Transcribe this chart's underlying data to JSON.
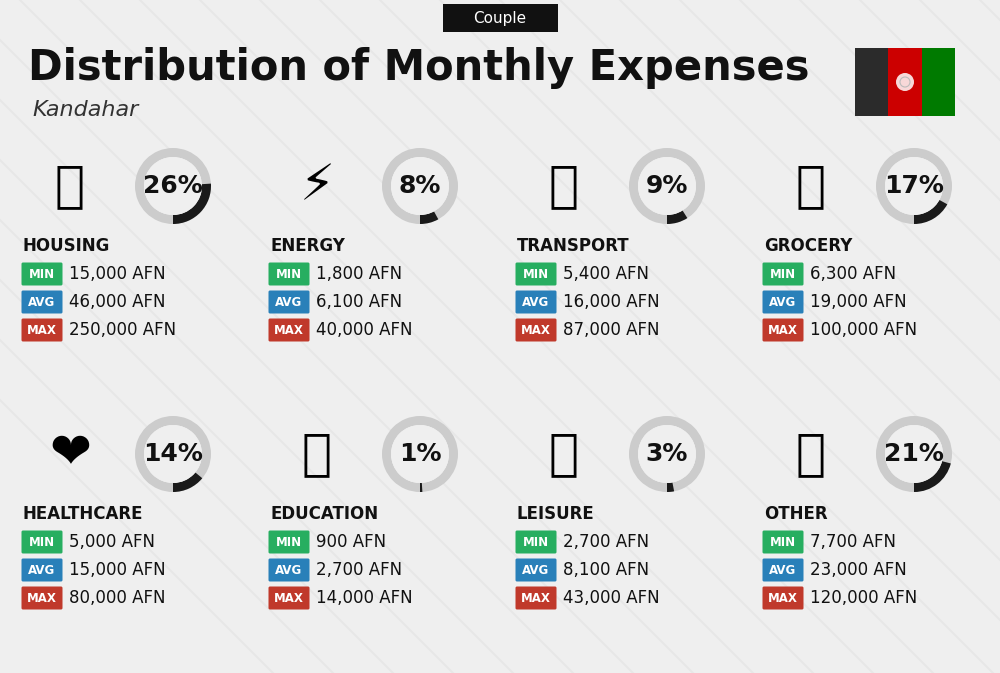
{
  "title": "Distribution of Monthly Expenses",
  "subtitle": "Kandahar",
  "badge": "Couple",
  "bg_color": "#efefef",
  "categories": [
    {
      "name": "HOUSING",
      "pct": 26,
      "min_val": "15,000 AFN",
      "avg_val": "46,000 AFN",
      "max_val": "250,000 AFN"
    },
    {
      "name": "ENERGY",
      "pct": 8,
      "min_val": "1,800 AFN",
      "avg_val": "6,100 AFN",
      "max_val": "40,000 AFN"
    },
    {
      "name": "TRANSPORT",
      "pct": 9,
      "min_val": "5,400 AFN",
      "avg_val": "16,000 AFN",
      "max_val": "87,000 AFN"
    },
    {
      "name": "GROCERY",
      "pct": 17,
      "min_val": "6,300 AFN",
      "avg_val": "19,000 AFN",
      "max_val": "100,000 AFN"
    },
    {
      "name": "HEALTHCARE",
      "pct": 14,
      "min_val": "5,000 AFN",
      "avg_val": "15,000 AFN",
      "max_val": "80,000 AFN"
    },
    {
      "name": "EDUCATION",
      "pct": 1,
      "min_val": "900 AFN",
      "avg_val": "2,700 AFN",
      "max_val": "14,000 AFN"
    },
    {
      "name": "LEISURE",
      "pct": 3,
      "min_val": "2,700 AFN",
      "avg_val": "8,100 AFN",
      "max_val": "43,000 AFN"
    },
    {
      "name": "OTHER",
      "pct": 21,
      "min_val": "7,700 AFN",
      "avg_val": "23,000 AFN",
      "max_val": "120,000 AFN"
    }
  ],
  "min_color": "#27ae60",
  "avg_color": "#2980b9",
  "max_color": "#c0392b",
  "arc_color_active": "#1a1a1a",
  "arc_color_bg": "#cccccc",
  "stripe_color": "#d0d0d0",
  "title_fontsize": 30,
  "subtitle_fontsize": 16,
  "badge_fontsize": 11,
  "cat_fontsize": 12,
  "val_fontsize": 12,
  "pct_fontsize": 18,
  "flag_black": "#2b2b2b",
  "flag_red": "#cc0000",
  "flag_green": "#007a00"
}
